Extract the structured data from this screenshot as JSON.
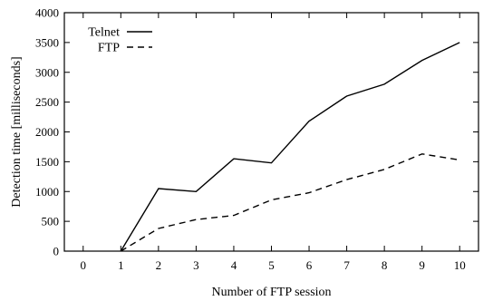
{
  "chart_data": {
    "type": "line",
    "x": [
      0,
      1,
      2,
      3,
      4,
      5,
      6,
      7,
      8,
      9,
      10
    ],
    "xlabel": "Number of FTP session",
    "ylabel": "Detection time [milliseconds]",
    "xlim": [
      -0.5,
      10.5
    ],
    "ylim": [
      0,
      4000
    ],
    "xticks": [
      0,
      1,
      2,
      3,
      4,
      5,
      6,
      7,
      8,
      9,
      10
    ],
    "yticks": [
      0,
      500,
      1000,
      1500,
      2000,
      2500,
      3000,
      3500,
      4000
    ],
    "grid": false,
    "legend_position": "top-left",
    "series": [
      {
        "name": "Telnet",
        "style": "solid",
        "color": "#000000",
        "x": [
          1,
          2,
          3,
          4,
          5,
          6,
          7,
          8,
          9,
          10
        ],
        "values": [
          0,
          1050,
          1000,
          1550,
          1480,
          2180,
          2600,
          2800,
          3200,
          3500
        ]
      },
      {
        "name": "FTP",
        "style": "dashed",
        "color": "#000000",
        "x": [
          1,
          2,
          3,
          4,
          5,
          6,
          7,
          8,
          9,
          10
        ],
        "values": [
          0,
          380,
          530,
          600,
          860,
          980,
          1200,
          1370,
          1630,
          1530
        ]
      }
    ]
  }
}
